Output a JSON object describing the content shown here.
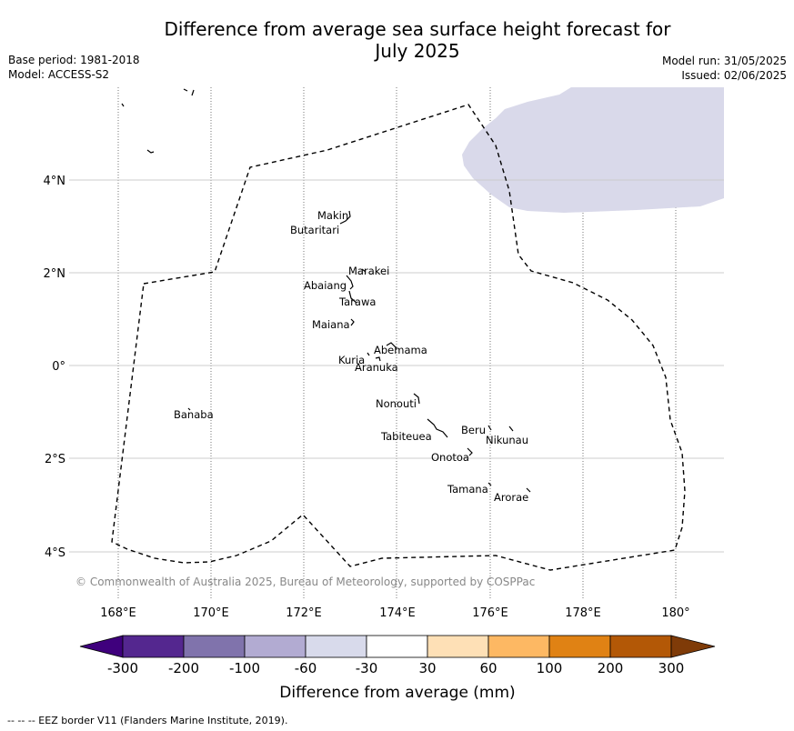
{
  "header": {
    "title_line1": "Difference from average sea surface height forecast for",
    "title_line2": "July 2025",
    "base_period": "Base period: 1981-2018",
    "model": "Model: ACCESS-S2",
    "model_run": "Model run: 31/05/2025",
    "issued": "Issued: 02/06/2025"
  },
  "map": {
    "lat_labels": [
      "4°N",
      "2°N",
      "0°",
      "2°S",
      "4°S"
    ],
    "lon_labels": [
      "168°E",
      "170°E",
      "172°E",
      "174°E",
      "176°E",
      "178°E",
      "180°"
    ],
    "copyright": "© Commonwealth of Australia 2025, Bureau of Meteorology, supported by COSPPac",
    "islands": [
      "Makin",
      "Butaritari",
      "Marakei",
      "Abaiang",
      "Tarawa",
      "Maiana",
      "Abemama",
      "Kuria",
      "Aranuka",
      "Banaba",
      "Nonouti",
      "Tabiteuea",
      "Beru",
      "Nikunau",
      "Onotoa",
      "Tamana",
      "Arorae"
    ],
    "anomaly_class_shown": "-60 to -30",
    "colors": {
      "anomaly_fill": "#d9d9ea",
      "gridline": "#cccccc"
    }
  },
  "colorbar": {
    "ticks": [
      "-300",
      "-200",
      "-100",
      "-60",
      "-30",
      "30",
      "60",
      "100",
      "200",
      "300"
    ],
    "label": "Difference from average (mm)",
    "colors": [
      "#3f007d",
      "#54278f",
      "#8073ac",
      "#b2abd2",
      "#d8daeb",
      "#ffffff",
      "#fee0b6",
      "#fdb863",
      "#e08214",
      "#b35806",
      "#7f3b08"
    ]
  },
  "footer": {
    "eez_note": "--  --  -- EEZ border V11 (Flanders Marine Institute, 2019)."
  }
}
